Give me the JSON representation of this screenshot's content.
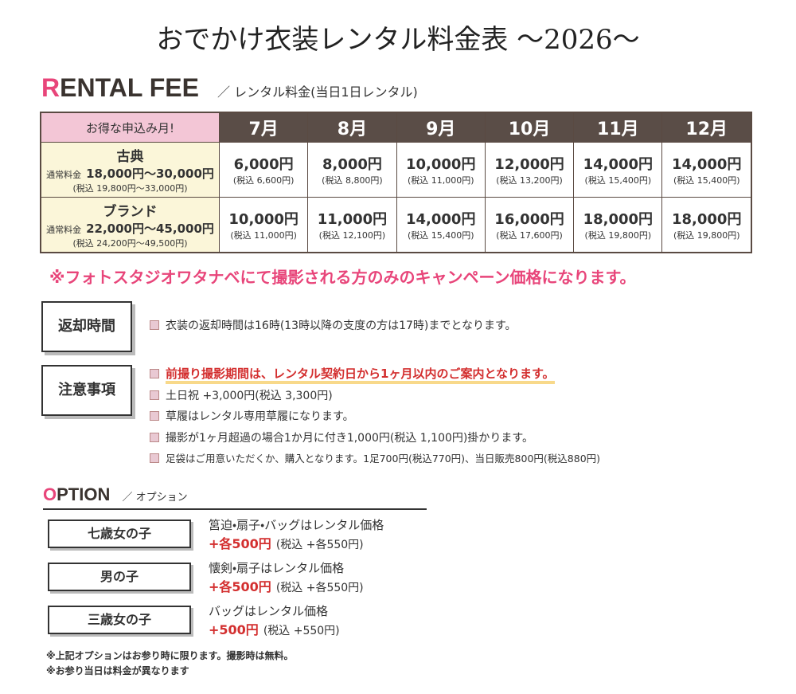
{
  "title": "おでかけ衣装レンタル料金表 〜2026〜",
  "rental": {
    "heading": "RENTAL FEE",
    "subheading": "／ レンタル料金(当日1日レンタル)"
  },
  "table": {
    "corner": "お得な申込み月!",
    "months": [
      "7月",
      "8月",
      "9月",
      "10月",
      "11月",
      "12月"
    ],
    "rows": [
      {
        "name": "古典",
        "regular": "通常料金",
        "regular_price": "18,000円～30,000円",
        "regular_tax": "(税込 19,800円～33,000円)",
        "prices": [
          "6,000円",
          "8,000円",
          "10,000円",
          "12,000円",
          "14,000円",
          "14,000円"
        ],
        "taxes": [
          "(税込 6,600円)",
          "(税込 8,800円)",
          "(税込 11,000円)",
          "(税込 13,200円)",
          "(税込 15,400円)",
          "(税込 15,400円)"
        ]
      },
      {
        "name": "ブランド",
        "regular": "通常料金",
        "regular_price": "22,000円～45,000円",
        "regular_tax": "(税込 24,200円～49,500円)",
        "prices": [
          "10,000円",
          "11,000円",
          "14,000円",
          "16,000円",
          "18,000円",
          "18,000円"
        ],
        "taxes": [
          "(税込 11,000円)",
          "(税込 12,100円)",
          "(税込 15,400円)",
          "(税込 17,600円)",
          "(税込 19,800円)",
          "(税込 19,800円)"
        ]
      }
    ]
  },
  "campaign_note": "※フォトスタジオワタナベにて撮影される方のみのキャンペーン価格になります。",
  "return_time": {
    "label": "返却時間",
    "items": [
      "衣装の返却時間は16時(13時以降の支度の方は17時)までとなります。"
    ]
  },
  "notes": {
    "label": "注意事項",
    "items": [
      "前撮り撮影期間は、レンタル契約日から1ヶ月以内のご案内となります。",
      "土日祝 +3,000円(税込 3,300円)",
      "草履はレンタル専用草履になります。",
      "撮影が1ヶ月超過の場合1か月に付き1,000円(税込 1,100円)掛かります。",
      "足袋はご用意いただくか、購入となります。1足700円(税込770円)、当日販売800円(税込880円)"
    ]
  },
  "option": {
    "heading": "OPTION",
    "subheading": "／ オプション",
    "items": [
      {
        "label": "七歳女の子",
        "desc": "筥迫・扇子・バッグはレンタル価格",
        "price": "+各500円",
        "tax": "(税込 +各550円)"
      },
      {
        "label": "男の子",
        "desc": "懐剣・扇子はレンタル価格",
        "price": "+各500円",
        "tax": "(税込 +各550円)"
      },
      {
        "label": "三歳女の子",
        "desc": "バッグはレンタル価格",
        "price": "+500円",
        "tax": "(税込 +550円)"
      }
    ]
  },
  "footnotes": [
    "※上記オプションはお参り時に限ります。撮影時は無料。",
    "※お参り当日は料金が異なります"
  ]
}
